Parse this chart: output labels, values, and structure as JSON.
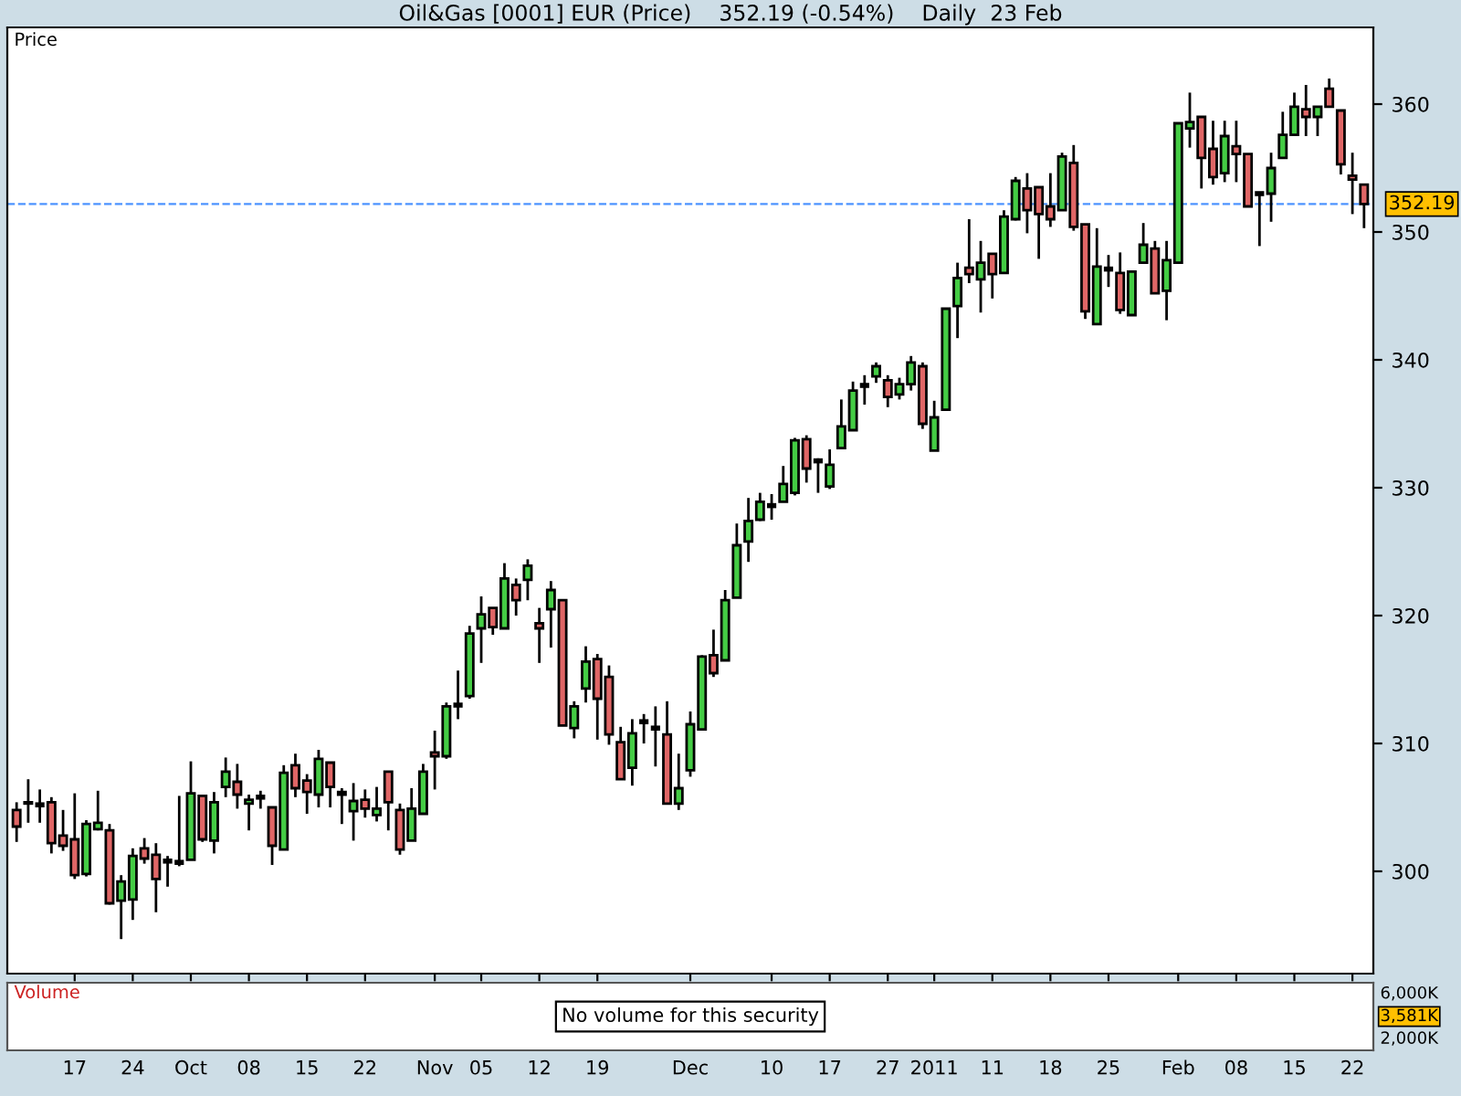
{
  "chart_data": [
    {
      "type": "candlestick",
      "title": "Oil&Gas [0001] EUR (Price)    352.19 (-0.54%)    Daily  23 Feb",
      "ylabel": "Price",
      "categories": [
        null,
        null,
        null,
        null,
        null,
        "17",
        null,
        null,
        null,
        null,
        "24",
        null,
        null,
        null,
        null,
        "Oct",
        null,
        null,
        null,
        null,
        "08",
        null,
        null,
        null,
        null,
        "15",
        null,
        null,
        null,
        null,
        "22",
        null,
        null,
        null,
        null,
        null,
        "Nov",
        null,
        null,
        null,
        "05",
        null,
        null,
        null,
        null,
        "12",
        null,
        null,
        null,
        null,
        "19",
        null,
        null,
        null,
        null,
        null,
        null,
        null,
        "Dec",
        null,
        null,
        null,
        null,
        null,
        null,
        "10",
        null,
        null,
        null,
        null,
        "17",
        null,
        null,
        null,
        null,
        "27",
        null,
        null,
        null,
        "2011",
        null,
        null,
        null,
        null,
        "11",
        null,
        null,
        null,
        null,
        "18",
        null,
        null,
        null,
        null,
        "25",
        null,
        null,
        null,
        null,
        null,
        "Feb",
        null,
        null,
        null,
        null,
        "08",
        null,
        null,
        null,
        null,
        "15",
        null,
        null,
        null,
        null,
        "22",
        null
      ],
      "ohlc": [
        [
          304.8,
          305.4,
          302.3,
          303.5
        ],
        [
          305.3,
          307.2,
          303.8,
          305.4
        ],
        [
          305.2,
          306.4,
          303.8,
          305.2
        ],
        [
          305.4,
          305.8,
          301.4,
          302.2
        ],
        [
          302.8,
          304.8,
          301.6,
          302.0
        ],
        [
          302.5,
          306.1,
          299.4,
          299.7
        ],
        [
          299.8,
          304.0,
          299.6,
          303.7
        ],
        [
          303.3,
          306.3,
          303.2,
          303.8
        ],
        [
          303.2,
          303.7,
          297.4,
          297.5
        ],
        [
          297.7,
          299.7,
          294.7,
          299.2
        ],
        [
          297.8,
          301.8,
          296.2,
          301.2
        ],
        [
          301.8,
          302.6,
          300.6,
          301.0
        ],
        [
          301.3,
          302.2,
          296.8,
          299.4
        ],
        [
          300.8,
          301.2,
          298.8,
          300.8
        ],
        [
          300.7,
          305.9,
          300.4,
          300.7
        ],
        [
          300.9,
          308.6,
          300.9,
          306.1
        ],
        [
          305.9,
          306.0,
          302.3,
          302.5
        ],
        [
          302.4,
          306.2,
          301.4,
          305.4
        ],
        [
          306.6,
          308.9,
          305.8,
          307.8
        ],
        [
          307.0,
          308.4,
          304.9,
          306.0
        ],
        [
          305.3,
          306.0,
          303.2,
          305.6
        ],
        [
          305.8,
          306.3,
          304.9,
          305.8
        ],
        [
          305.0,
          305.0,
          300.5,
          302.0
        ],
        [
          301.7,
          308.3,
          301.7,
          307.7
        ],
        [
          308.3,
          309.2,
          305.8,
          306.5
        ],
        [
          307.1,
          307.6,
          304.5,
          306.2
        ],
        [
          306.0,
          309.5,
          305.0,
          308.8
        ],
        [
          308.5,
          308.5,
          305.0,
          306.6
        ],
        [
          306.0,
          306.5,
          303.7,
          306.2
        ],
        [
          304.7,
          306.9,
          302.4,
          305.5
        ],
        [
          305.6,
          306.4,
          304.2,
          304.9
        ],
        [
          304.4,
          306.6,
          303.9,
          304.9
        ],
        [
          307.8,
          307.8,
          303.2,
          305.4
        ],
        [
          304.8,
          305.3,
          301.3,
          301.7
        ],
        [
          302.4,
          306.5,
          302.4,
          304.9
        ],
        [
          304.5,
          308.4,
          304.5,
          307.8
        ],
        [
          309.3,
          311.0,
          306.4,
          309.0
        ],
        [
          309.0,
          313.2,
          308.8,
          312.9
        ],
        [
          313.0,
          315.7,
          311.9,
          313.0
        ],
        [
          313.7,
          319.2,
          313.5,
          318.6
        ],
        [
          319.0,
          321.5,
          316.3,
          320.1
        ],
        [
          320.6,
          320.6,
          318.5,
          319.1
        ],
        [
          319.0,
          324.1,
          319.0,
          322.9
        ],
        [
          322.4,
          322.9,
          320.0,
          321.2
        ],
        [
          322.8,
          324.4,
          321.2,
          323.9
        ],
        [
          319.4,
          320.6,
          316.3,
          319.0
        ],
        [
          320.5,
          322.7,
          317.5,
          322.0
        ],
        [
          321.2,
          321.2,
          311.4,
          311.4
        ],
        [
          311.2,
          313.3,
          310.4,
          312.9
        ],
        [
          314.3,
          317.6,
          313.2,
          316.4
        ],
        [
          316.6,
          317.0,
          310.3,
          313.5
        ],
        [
          315.2,
          316.1,
          309.9,
          310.7
        ],
        [
          310.1,
          311.3,
          307.2,
          307.2
        ],
        [
          308.1,
          311.9,
          306.7,
          310.8
        ],
        [
          311.7,
          312.3,
          310.0,
          311.7
        ],
        [
          311.2,
          312.9,
          308.2,
          311.2
        ],
        [
          310.7,
          313.3,
          305.3,
          305.3
        ],
        [
          305.3,
          309.2,
          304.8,
          306.5
        ],
        [
          307.9,
          312.5,
          307.4,
          311.5
        ],
        [
          311.1,
          316.9,
          311.1,
          316.8
        ],
        [
          316.9,
          318.9,
          315.2,
          315.5
        ],
        [
          316.5,
          322.0,
          316.5,
          321.2
        ],
        [
          321.4,
          327.2,
          321.4,
          325.5
        ],
        [
          325.8,
          329.2,
          324.2,
          327.4
        ],
        [
          327.5,
          329.6,
          327.4,
          328.9
        ],
        [
          328.6,
          329.5,
          327.5,
          328.6
        ],
        [
          328.9,
          331.7,
          328.9,
          330.3
        ],
        [
          329.6,
          333.9,
          329.4,
          333.7
        ],
        [
          333.8,
          334.1,
          330.4,
          331.5
        ],
        [
          332.1,
          332.3,
          329.6,
          332.1
        ],
        [
          330.1,
          333.0,
          329.9,
          331.8
        ],
        [
          333.1,
          336.9,
          333.1,
          334.8
        ],
        [
          334.5,
          338.3,
          334.5,
          337.6
        ],
        [
          338.0,
          338.8,
          336.5,
          338.0
        ],
        [
          338.7,
          339.8,
          338.2,
          339.5
        ],
        [
          338.4,
          338.8,
          336.3,
          337.1
        ],
        [
          337.3,
          338.6,
          336.9,
          338.1
        ],
        [
          338.1,
          340.3,
          337.6,
          339.8
        ],
        [
          339.5,
          339.8,
          334.6,
          335.0
        ],
        [
          332.9,
          336.8,
          332.9,
          335.5
        ],
        [
          336.1,
          344.0,
          336.1,
          344.0
        ],
        [
          344.2,
          347.6,
          341.7,
          346.4
        ],
        [
          347.2,
          351.0,
          346.0,
          346.7
        ],
        [
          346.3,
          349.3,
          343.7,
          347.6
        ],
        [
          348.3,
          348.3,
          344.8,
          346.7
        ],
        [
          346.8,
          351.7,
          346.8,
          351.2
        ],
        [
          351.0,
          354.3,
          350.9,
          354.0
        ],
        [
          353.4,
          354.6,
          349.9,
          351.7
        ],
        [
          353.5,
          353.5,
          347.9,
          351.4
        ],
        [
          352.0,
          354.6,
          350.4,
          351.0
        ],
        [
          351.7,
          356.2,
          351.7,
          355.9
        ],
        [
          355.4,
          356.8,
          350.1,
          350.4
        ],
        [
          350.6,
          350.6,
          343.2,
          343.8
        ],
        [
          342.8,
          350.3,
          342.8,
          347.3
        ],
        [
          347.1,
          348.2,
          345.7,
          347.1
        ],
        [
          346.8,
          348.4,
          343.6,
          343.9
        ],
        [
          343.5,
          346.9,
          343.5,
          346.9
        ],
        [
          347.6,
          350.7,
          347.6,
          349.0
        ],
        [
          348.7,
          349.3,
          345.2,
          345.2
        ],
        [
          345.4,
          349.3,
          343.1,
          347.8
        ],
        [
          347.6,
          358.5,
          347.6,
          358.5
        ],
        [
          358.1,
          360.9,
          356.6,
          358.6
        ],
        [
          359.0,
          359.0,
          353.4,
          355.8
        ],
        [
          356.5,
          358.7,
          353.7,
          354.3
        ],
        [
          354.6,
          358.7,
          353.9,
          357.5
        ],
        [
          356.7,
          358.7,
          353.9,
          356.1
        ],
        [
          356.1,
          356.1,
          352.0,
          352.0
        ],
        [
          353.0,
          353.1,
          348.9,
          353.0
        ],
        [
          353.0,
          356.2,
          350.8,
          355.0
        ],
        [
          355.8,
          359.4,
          355.8,
          357.6
        ],
        [
          357.6,
          360.9,
          357.6,
          359.8
        ],
        [
          359.6,
          361.5,
          357.5,
          359.0
        ],
        [
          359.0,
          359.8,
          357.5,
          359.8
        ],
        [
          361.2,
          362.0,
          359.8,
          359.8
        ],
        [
          359.5,
          359.5,
          354.5,
          355.3
        ],
        [
          354.4,
          356.2,
          351.4,
          354.1
        ],
        [
          353.7,
          353.7,
          350.3,
          352.19
        ]
      ],
      "colors": [
        "#e06666",
        "#44cc44",
        "#000000",
        "#e06666",
        "#e06666",
        "#e06666",
        "#44cc44",
        "#44cc44",
        "#e06666",
        "#44cc44",
        "#44cc44",
        "#e06666",
        "#e06666",
        "#000000",
        "#000000",
        "#44cc44",
        "#e06666",
        "#44cc44",
        "#44cc44",
        "#e06666",
        "#44cc44",
        "#000000",
        "#e06666",
        "#44cc44",
        "#e06666",
        "#e06666",
        "#44cc44",
        "#e06666",
        "#44cc44",
        "#44cc44",
        "#e06666",
        "#44cc44",
        "#e06666",
        "#e06666",
        "#44cc44",
        "#44cc44",
        "#e06666",
        "#44cc44",
        "#000000",
        "#44cc44",
        "#44cc44",
        "#e06666",
        "#44cc44",
        "#e06666",
        "#44cc44",
        "#e06666",
        "#44cc44",
        "#e06666",
        "#44cc44",
        "#44cc44",
        "#e06666",
        "#e06666",
        "#e06666",
        "#44cc44",
        "#000000",
        "#000000",
        "#e06666",
        "#44cc44",
        "#44cc44",
        "#44cc44",
        "#e06666",
        "#44cc44",
        "#44cc44",
        "#44cc44",
        "#44cc44",
        "#000000",
        "#44cc44",
        "#44cc44",
        "#e06666",
        "#000000",
        "#44cc44",
        "#44cc44",
        "#44cc44",
        "#000000",
        "#44cc44",
        "#e06666",
        "#44cc44",
        "#44cc44",
        "#e06666",
        "#44cc44",
        "#44cc44",
        "#44cc44",
        "#e06666",
        "#44cc44",
        "#e06666",
        "#44cc44",
        "#44cc44",
        "#e06666",
        "#e06666",
        "#e06666",
        "#44cc44",
        "#e06666",
        "#e06666",
        "#44cc44",
        "#000000",
        "#e06666",
        "#44cc44",
        "#44cc44",
        "#e06666",
        "#44cc44",
        "#44cc44",
        "#44cc44",
        "#e06666",
        "#e06666",
        "#44cc44",
        "#e06666",
        "#e06666",
        "#000000",
        "#44cc44",
        "#44cc44",
        "#44cc44",
        "#e06666",
        "#44cc44",
        "#e06666",
        "#e06666",
        "#e06666",
        "#e06666"
      ],
      "ylim": [
        292,
        366
      ],
      "yticks": [
        300,
        310,
        320,
        330,
        340,
        350,
        360
      ],
      "ref_lines": [
        {
          "axis": "y",
          "value": 352.19,
          "label": "352.19",
          "color": "#4d94ff",
          "line_style": "dashed"
        }
      ],
      "grid": false,
      "legend": false
    },
    {
      "type": "other",
      "title": "Volume",
      "annotations": [
        "No volume for this security",
        "6,000K",
        "3,581K",
        "2,000K"
      ]
    }
  ]
}
